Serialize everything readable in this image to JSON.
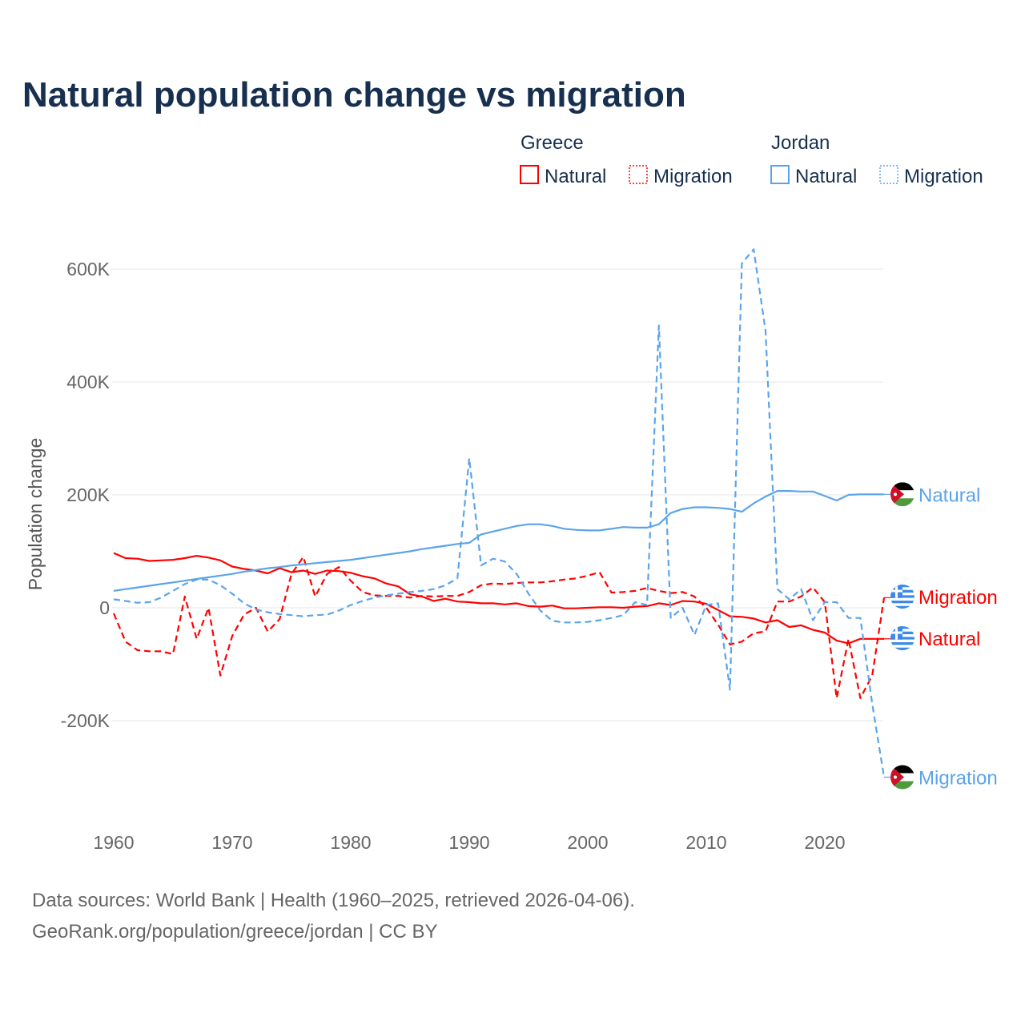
{
  "chart_data": {
    "type": "line",
    "title": "Natural population change vs migration",
    "ylabel": "Population change",
    "xlabel": "",
    "xlim": [
      1960,
      2025
    ],
    "ylim": [
      -300000,
      650000
    ],
    "x_ticks": [
      1960,
      1970,
      1980,
      1990,
      2000,
      2010,
      2020
    ],
    "x_tick_labels": [
      "1960",
      "1970",
      "1980",
      "1990",
      "2000",
      "2010",
      "2020"
    ],
    "y_ticks": [
      -200000,
      0,
      200000,
      400000,
      600000
    ],
    "y_tick_labels": [
      "-200K",
      "0",
      "200K",
      "400K",
      "600K"
    ],
    "grid": true,
    "legend": {
      "placement": "top-right",
      "groups": [
        {
          "country": "Greece",
          "items": [
            "Natural",
            "Migration"
          ]
        },
        {
          "country": "Jordan",
          "items": [
            "Natural",
            "Migration"
          ]
        }
      ]
    },
    "colors": {
      "Greece": "#ff0000",
      "Jordan": "#5ba4eb"
    },
    "x": [
      1960,
      1961,
      1962,
      1963,
      1964,
      1965,
      1966,
      1967,
      1968,
      1969,
      1970,
      1971,
      1972,
      1973,
      1974,
      1975,
      1976,
      1977,
      1978,
      1979,
      1980,
      1981,
      1982,
      1983,
      1984,
      1985,
      1986,
      1987,
      1988,
      1989,
      1990,
      1991,
      1992,
      1993,
      1994,
      1995,
      1996,
      1997,
      1998,
      1999,
      2000,
      2001,
      2002,
      2003,
      2004,
      2005,
      2006,
      2007,
      2008,
      2009,
      2010,
      2011,
      2012,
      2013,
      2014,
      2015,
      2016,
      2017,
      2018,
      2019,
      2020,
      2021,
      2022,
      2023,
      2024,
      2025
    ],
    "series": [
      {
        "name": "Greece Natural",
        "country": "Greece",
        "kind": "Natural",
        "end_label": "Natural",
        "values": [
          97,
          88,
          87,
          83,
          84,
          85,
          88,
          92,
          89,
          84,
          73,
          69,
          66,
          61,
          70,
          63,
          66,
          60,
          66,
          65,
          62,
          56,
          52,
          43,
          38,
          24,
          20,
          12,
          16,
          11,
          10,
          8,
          8,
          6,
          8,
          3,
          2,
          4,
          -1,
          -1,
          0,
          1,
          1,
          0,
          2,
          3,
          8,
          5,
          12,
          11,
          7,
          -4,
          -15,
          -16,
          -19,
          -26,
          -22,
          -34,
          -31,
          -39,
          -44,
          -58,
          -63,
          -55,
          -55,
          -55
        ]
      },
      {
        "name": "Greece Migration",
        "country": "Greece",
        "kind": "Migration",
        "end_label": "Migration",
        "values": [
          -10,
          -60,
          -75,
          -77,
          -77,
          -82,
          20,
          -55,
          0,
          -120,
          -50,
          -12,
          0,
          -42,
          -20,
          60,
          90,
          20,
          60,
          72,
          48,
          28,
          22,
          21,
          21,
          18,
          21,
          20,
          21,
          21,
          28,
          40,
          43,
          42,
          44,
          45,
          45,
          47,
          50,
          52,
          57,
          63,
          27,
          28,
          30,
          35,
          30,
          26,
          28,
          20,
          0,
          -30,
          -65,
          -60,
          -45,
          -42,
          11,
          11,
          20,
          36,
          10,
          -160,
          -55,
          -160,
          -120,
          18
        ]
      },
      {
        "name": "Jordan Natural",
        "country": "Jordan",
        "kind": "Natural",
        "end_label": "Natural",
        "values": [
          30,
          33,
          36,
          39,
          42,
          45,
          48,
          51,
          54,
          57,
          60,
          64,
          67,
          70,
          72,
          75,
          77,
          79,
          81,
          83,
          85,
          88,
          91,
          94,
          97,
          100,
          104,
          107,
          110,
          113,
          115,
          130,
          135,
          140,
          145,
          148,
          148,
          145,
          140,
          138,
          137,
          137,
          140,
          143,
          142,
          142,
          148,
          168,
          175,
          178,
          178,
          177,
          175,
          170,
          185,
          197,
          207,
          207,
          206,
          206,
          198,
          190,
          200,
          201,
          201,
          201
        ]
      },
      {
        "name": "Jordan Migration",
        "country": "Jordan",
        "kind": "Migration",
        "end_label": "Migration",
        "values": [
          15,
          12,
          9,
          10,
          18,
          30,
          42,
          50,
          50,
          40,
          25,
          8,
          -3,
          -8,
          -11,
          -13,
          -15,
          -13,
          -12,
          -5,
          5,
          12,
          18,
          22,
          25,
          28,
          30,
          33,
          40,
          52,
          265,
          75,
          87,
          82,
          60,
          25,
          -5,
          -23,
          -26,
          -26,
          -25,
          -22,
          -18,
          -13,
          10,
          5,
          500,
          -18,
          0,
          -48,
          5,
          8,
          -145,
          610,
          635,
          490,
          33,
          15,
          33,
          -22,
          10,
          10,
          -18,
          -18,
          -170,
          -300
        ]
      }
    ],
    "value_unit": "thousands",
    "source": "Data sources: World Bank | Health (1960–2025, retrieved 2026-04-06).",
    "credit": "GeoRank.org/population/greece/jordan | CC BY"
  }
}
